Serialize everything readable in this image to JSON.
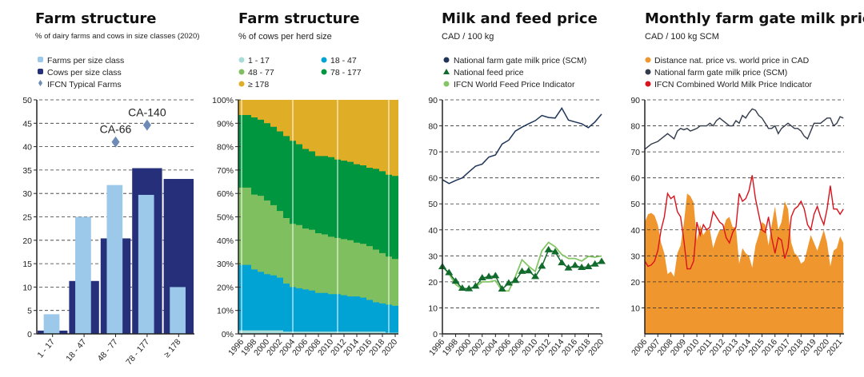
{
  "colors": {
    "farms": "#9cc8ea",
    "cows": "#262f7a",
    "typical": "#6e8bb8",
    "s1_17": "#a8dcd8",
    "s18_47": "#00a3d3",
    "s48_77": "#7fbf5f",
    "s78_177": "#00963f",
    "s178": "#e0ae26",
    "milk": "#1e3558",
    "feed": "#126b2c",
    "world_feed": "#84c665",
    "distance": "#f0962e",
    "nat_monthly": "#333c4c",
    "world_milk": "#d9121b"
  },
  "chart_data": [
    {
      "type": "bar",
      "title": "Farm structure",
      "subtitle": "% of dairy farms and cows in size classes (2020)",
      "legend": [
        "Farms per size class",
        "Cows per size class",
        "IFCN Typical Farms"
      ],
      "categories": [
        "1 - 17",
        "18 - 47",
        "48 - 77",
        "78 - 177",
        "≥ 178"
      ],
      "series": [
        {
          "name": "Farms per size class",
          "values": [
            4.2,
            25.0,
            31.8,
            29.7,
            10.0
          ]
        },
        {
          "name": "Cows per size class",
          "values": [
            0.7,
            11.3,
            20.4,
            35.4,
            33.1
          ]
        }
      ],
      "typical_farms": [
        {
          "label": "CA-66",
          "category": "48 - 77",
          "value": 41.0
        },
        {
          "label": "CA-140",
          "category": "78 - 177",
          "value": 44.6
        }
      ],
      "ylim": [
        0,
        50
      ],
      "yticks": [
        "0",
        "5",
        "10",
        "15",
        "20",
        "25",
        "30",
        "35",
        "40",
        "45",
        "50"
      ]
    },
    {
      "type": "area",
      "stacked": true,
      "title": "Farm structure",
      "subtitle": "% of cows per herd size",
      "legend": [
        "1 - 17",
        "18 - 47",
        "48 - 77",
        "78 - 177",
        "≥ 178"
      ],
      "x": [
        1996,
        1997,
        1998,
        1999,
        2000,
        2001,
        2002,
        2003,
        2004,
        2005,
        2006,
        2007,
        2008,
        2009,
        2010,
        2011,
        2012,
        2013,
        2014,
        2015,
        2016,
        2017,
        2018,
        2019,
        2020
      ],
      "cumulative_tops": {
        "1 - 17": [
          1.5,
          1.5,
          1.5,
          1.5,
          1.5,
          1.5,
          1.5,
          1,
          1,
          1,
          1,
          1,
          1,
          1,
          1,
          1,
          1,
          1,
          1,
          1,
          1,
          1,
          1,
          0.5,
          0.5
        ],
        "18 - 47": [
          29.5,
          29.5,
          27.5,
          26.5,
          25.5,
          25,
          24,
          21.5,
          20,
          19.5,
          19,
          18.5,
          17.5,
          17.5,
          17,
          17,
          16.5,
          16,
          16,
          15.5,
          14.5,
          13.5,
          13,
          12.5,
          12
        ],
        "48 - 77": [
          62.5,
          62.5,
          59.5,
          59,
          57,
          55,
          52.5,
          49.5,
          47,
          46.5,
          45,
          44.5,
          43,
          42.5,
          41.5,
          41,
          40.5,
          40,
          39,
          38.5,
          37.5,
          36,
          34.5,
          33,
          32
        ],
        "78 - 177": [
          93.5,
          93.5,
          92.5,
          91.5,
          90,
          88.5,
          86.5,
          84.5,
          82.5,
          81,
          79,
          78,
          76,
          76,
          75.5,
          74.5,
          74,
          73.5,
          72.5,
          72,
          71,
          70.5,
          69.5,
          68,
          67.5
        ],
        "≥ 178": [
          100,
          100,
          100,
          100,
          100,
          100,
          100,
          100,
          100,
          100,
          100,
          100,
          100,
          100,
          100,
          100,
          100,
          100,
          100,
          100,
          100,
          100,
          100,
          100,
          100
        ]
      },
      "ylim": [
        0,
        100
      ],
      "yticks": [
        "0%",
        "10%",
        "20%",
        "30%",
        "40%",
        "50%",
        "60%",
        "70%",
        "80%",
        "90%",
        "100%"
      ],
      "xticks": [
        "1996",
        "1998",
        "2000",
        "2002",
        "2004",
        "2006",
        "2008",
        "2010",
        "2012",
        "2014",
        "2016",
        "2018",
        "2020"
      ]
    },
    {
      "type": "line",
      "title": "Milk and feed price",
      "subtitle": "CAD / 100 kg",
      "legend": [
        "National farm gate milk price (SCM)",
        "National feed price",
        "IFCN World Feed Price Indicator"
      ],
      "x": [
        1996,
        1997,
        1998,
        1999,
        2000,
        2001,
        2002,
        2003,
        2004,
        2005,
        2006,
        2007,
        2008,
        2009,
        2010,
        2011,
        2012,
        2013,
        2014,
        2015,
        2016,
        2017,
        2018,
        2019,
        2020
      ],
      "series": [
        {
          "name": "National farm gate milk price (SCM)",
          "values": [
            59.3,
            57.8,
            59,
            60,
            62.3,
            64.5,
            65.3,
            68,
            68.8,
            73,
            74.5,
            78,
            79.5,
            80.8,
            82,
            84,
            83.2,
            83,
            86.8,
            82.2,
            81.5,
            80.8,
            79.3,
            81.5,
            84.5
          ]
        },
        {
          "name": "National feed price",
          "values": [
            25.8,
            23.5,
            20.2,
            17.5,
            17.3,
            18.3,
            21.5,
            22,
            22.3,
            17.2,
            19.5,
            20.5,
            24,
            24.2,
            22,
            26,
            32.3,
            31.5,
            27.3,
            25.3,
            26.3,
            25.5,
            25.8,
            26.8,
            27.8
          ]
        },
        {
          "name": "IFCN World Feed Price Indicator",
          "values": [
            26,
            23,
            19,
            17.2,
            17.5,
            18,
            20,
            20,
            20.5,
            16.5,
            16.5,
            22,
            28.5,
            26,
            24,
            32,
            35.2,
            33.5,
            30.5,
            29,
            29,
            28,
            29.8,
            29.5,
            30
          ]
        }
      ],
      "ylim": [
        0,
        90
      ],
      "yticks": [
        "0",
        "10",
        "20",
        "30",
        "40",
        "50",
        "60",
        "70",
        "80",
        "90"
      ],
      "xticks": [
        "1996",
        "1998",
        "2000",
        "2002",
        "2004",
        "2006",
        "2008",
        "2010",
        "2012",
        "2014",
        "2016",
        "2018",
        "2020"
      ]
    },
    {
      "type": "line",
      "title": "Monthly farm gate milk price",
      "subtitle": "CAD / 100 kg SCM",
      "legend": [
        "Distance nat. price vs. world price in CAD",
        "National farm gate milk price (SCM)",
        "IFCN Combined World Milk Price Indicator"
      ],
      "x_start": 2006,
      "x_step": 0.25,
      "series": [
        {
          "name": "Distance nat. price vs. world price in CAD",
          "kind": "area",
          "values": [
            43,
            46,
            46.5,
            45.5,
            42,
            35,
            31,
            23,
            24,
            22,
            31,
            34,
            42.5,
            54,
            53,
            50.5,
            36,
            42,
            38,
            40,
            40,
            33,
            37,
            40,
            40,
            44,
            45,
            41,
            41,
            27,
            33,
            31,
            30,
            25.5,
            34,
            38,
            43,
            42,
            34,
            42,
            49,
            40,
            43,
            51,
            48,
            35,
            31,
            30,
            27,
            28,
            33,
            38,
            35,
            32,
            36,
            40,
            35,
            26,
            32,
            33,
            37.5,
            35
          ]
        },
        {
          "name": "National farm gate milk price (SCM)",
          "values": [
            71,
            72,
            73,
            73.5,
            74,
            75,
            76,
            77,
            76,
            75,
            78,
            79,
            78.5,
            79,
            78,
            78.5,
            79,
            80,
            80,
            80,
            81,
            80,
            82,
            83,
            82,
            81,
            80,
            80,
            82,
            81,
            84,
            83,
            85,
            86.5,
            86,
            84,
            83,
            81,
            79,
            79,
            80,
            77,
            79,
            80,
            81,
            80,
            79,
            79,
            78,
            76,
            75,
            78,
            81,
            81,
            81,
            82,
            83,
            83,
            80,
            81,
            83.5,
            83
          ]
        },
        {
          "name": "IFCN Combined World Milk Price Indicator",
          "values": [
            28,
            26,
            26.5,
            28,
            32,
            40,
            45,
            54,
            52,
            53,
            47,
            45,
            36,
            25,
            25,
            28,
            43,
            38,
            42,
            40,
            41,
            47,
            45,
            43,
            42,
            37,
            35,
            39,
            41,
            54,
            51,
            52,
            55,
            61,
            52,
            46,
            40,
            39,
            45,
            37,
            31,
            37,
            36,
            29,
            33,
            45,
            48,
            49,
            51,
            48,
            42,
            40,
            46,
            49,
            45,
            42,
            48,
            57,
            48,
            48,
            46,
            48
          ]
        }
      ],
      "ylim": [
        0,
        90
      ],
      "yticks": [
        "10",
        "20",
        "30",
        "40",
        "50",
        "60",
        "70",
        "80",
        "90"
      ],
      "xticks": [
        "2006",
        "2007",
        "2008",
        "2009",
        "2010",
        "2011",
        "2012",
        "2013",
        "2014",
        "2015",
        "2016",
        "2017",
        "2018",
        "2019",
        "2020",
        "2021"
      ]
    }
  ]
}
